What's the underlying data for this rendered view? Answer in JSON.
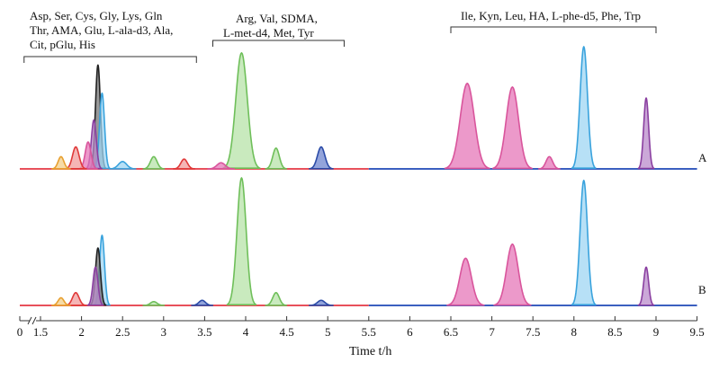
{
  "chart_data": {
    "type": "line",
    "title": "",
    "xlabel": "Time t/h",
    "ylabel": "",
    "xlim": [
      0,
      9.5
    ],
    "x_ticks": [
      "0",
      "1.5",
      "2",
      "2.5",
      "3",
      "3.5",
      "4",
      "4.5",
      "5",
      "5.5",
      "6",
      "6.5",
      "7",
      "7.5",
      "8",
      "8.5",
      "9",
      "9.5"
    ],
    "axis_break_between": [
      "0",
      "1.5"
    ],
    "groups": [
      {
        "name": "group-1",
        "lines": [
          "Asp, Ser, Cys, Gly, Lys, Gln",
          "Thr, AMA, Glu, L-ala-d3, Ala,",
          "Cit, pGlu, His"
        ],
        "range": [
          1.3,
          3.4
        ]
      },
      {
        "name": "group-2",
        "lines": [
          "Arg, Val, SDMA,",
          "L-met-d4, Met, Tyr"
        ],
        "range": [
          3.6,
          5.2
        ]
      },
      {
        "name": "group-3",
        "lines": [
          "Ile, Kyn, Leu, HA, L-phe-d5, Phe, Trp"
        ],
        "range": [
          6.5,
          9.0
        ]
      }
    ],
    "traces": [
      {
        "label": "A",
        "baseline_color": "#e8505b",
        "late_baseline_color": "#3b5fc0"
      },
      {
        "label": "B",
        "baseline_color": "#e8505b",
        "late_baseline_color": "#3b5fc0"
      }
    ],
    "series": [
      {
        "name": "pink",
        "color": "#d9559c",
        "fill": "#e577b8"
      },
      {
        "name": "light-blue",
        "color": "#3aa3dd",
        "fill": "#9fd6f3"
      },
      {
        "name": "green",
        "color": "#6fbf5a",
        "fill": "#b7e3a8"
      },
      {
        "name": "purple",
        "color": "#8a3fa0",
        "fill": "#b98bcb"
      },
      {
        "name": "dark-blue",
        "color": "#2c4ca8",
        "fill": "#6f86cf"
      },
      {
        "name": "red",
        "color": "#e03a3a",
        "fill": "#f19c9c"
      },
      {
        "name": "black",
        "color": "#222222",
        "fill": "#777777"
      },
      {
        "name": "orange",
        "color": "#e8a030",
        "fill": "#f3cf8a"
      }
    ],
    "peaks_A": [
      {
        "series": "pink",
        "time": 6.7,
        "height": 0.7,
        "width": 0.085
      },
      {
        "series": "pink",
        "time": 7.25,
        "height": 0.67,
        "width": 0.075
      },
      {
        "series": "pink",
        "time": 7.7,
        "height": 0.1,
        "width": 0.04
      },
      {
        "series": "light-blue",
        "time": 8.12,
        "height": 1.0,
        "width": 0.045
      },
      {
        "series": "purple",
        "time": 8.88,
        "height": 0.58,
        "width": 0.03
      },
      {
        "series": "green",
        "time": 3.95,
        "height": 0.95,
        "width": 0.07
      },
      {
        "series": "green",
        "time": 4.37,
        "height": 0.17,
        "width": 0.04
      },
      {
        "series": "dark-blue",
        "time": 4.92,
        "height": 0.18,
        "width": 0.045
      },
      {
        "series": "black",
        "time": 2.2,
        "height": 0.85,
        "width": 0.03
      },
      {
        "series": "light-blue",
        "time": 2.25,
        "height": 0.62,
        "width": 0.03
      },
      {
        "series": "purple",
        "time": 2.15,
        "height": 0.4,
        "width": 0.03
      },
      {
        "series": "pink",
        "time": 2.08,
        "height": 0.22,
        "width": 0.035
      },
      {
        "series": "red",
        "time": 1.93,
        "height": 0.18,
        "width": 0.04
      },
      {
        "series": "orange",
        "time": 1.75,
        "height": 0.1,
        "width": 0.035
      },
      {
        "series": "light-blue",
        "time": 2.5,
        "height": 0.06,
        "width": 0.05
      },
      {
        "series": "green",
        "time": 2.88,
        "height": 0.1,
        "width": 0.04
      },
      {
        "series": "red",
        "time": 3.25,
        "height": 0.08,
        "width": 0.04
      },
      {
        "series": "pink",
        "time": 3.7,
        "height": 0.05,
        "width": 0.05
      }
    ],
    "peaks_B": [
      {
        "series": "pink",
        "time": 6.68,
        "height": 0.37,
        "width": 0.07
      },
      {
        "series": "pink",
        "time": 7.25,
        "height": 0.48,
        "width": 0.07
      },
      {
        "series": "light-blue",
        "time": 8.12,
        "height": 0.98,
        "width": 0.045
      },
      {
        "series": "purple",
        "time": 8.88,
        "height": 0.3,
        "width": 0.03
      },
      {
        "series": "green",
        "time": 3.95,
        "height": 1.0,
        "width": 0.055
      },
      {
        "series": "green",
        "time": 4.37,
        "height": 0.1,
        "width": 0.04
      },
      {
        "series": "dark-blue",
        "time": 4.92,
        "height": 0.04,
        "width": 0.045
      },
      {
        "series": "light-blue",
        "time": 2.25,
        "height": 0.55,
        "width": 0.03
      },
      {
        "series": "black",
        "time": 2.2,
        "height": 0.45,
        "width": 0.03
      },
      {
        "series": "purple",
        "time": 2.17,
        "height": 0.3,
        "width": 0.03
      },
      {
        "series": "red",
        "time": 1.93,
        "height": 0.1,
        "width": 0.04
      },
      {
        "series": "orange",
        "time": 1.75,
        "height": 0.06,
        "width": 0.035
      },
      {
        "series": "dark-blue",
        "time": 3.47,
        "height": 0.04,
        "width": 0.04
      },
      {
        "series": "green",
        "time": 2.88,
        "height": 0.03,
        "width": 0.04
      }
    ]
  }
}
